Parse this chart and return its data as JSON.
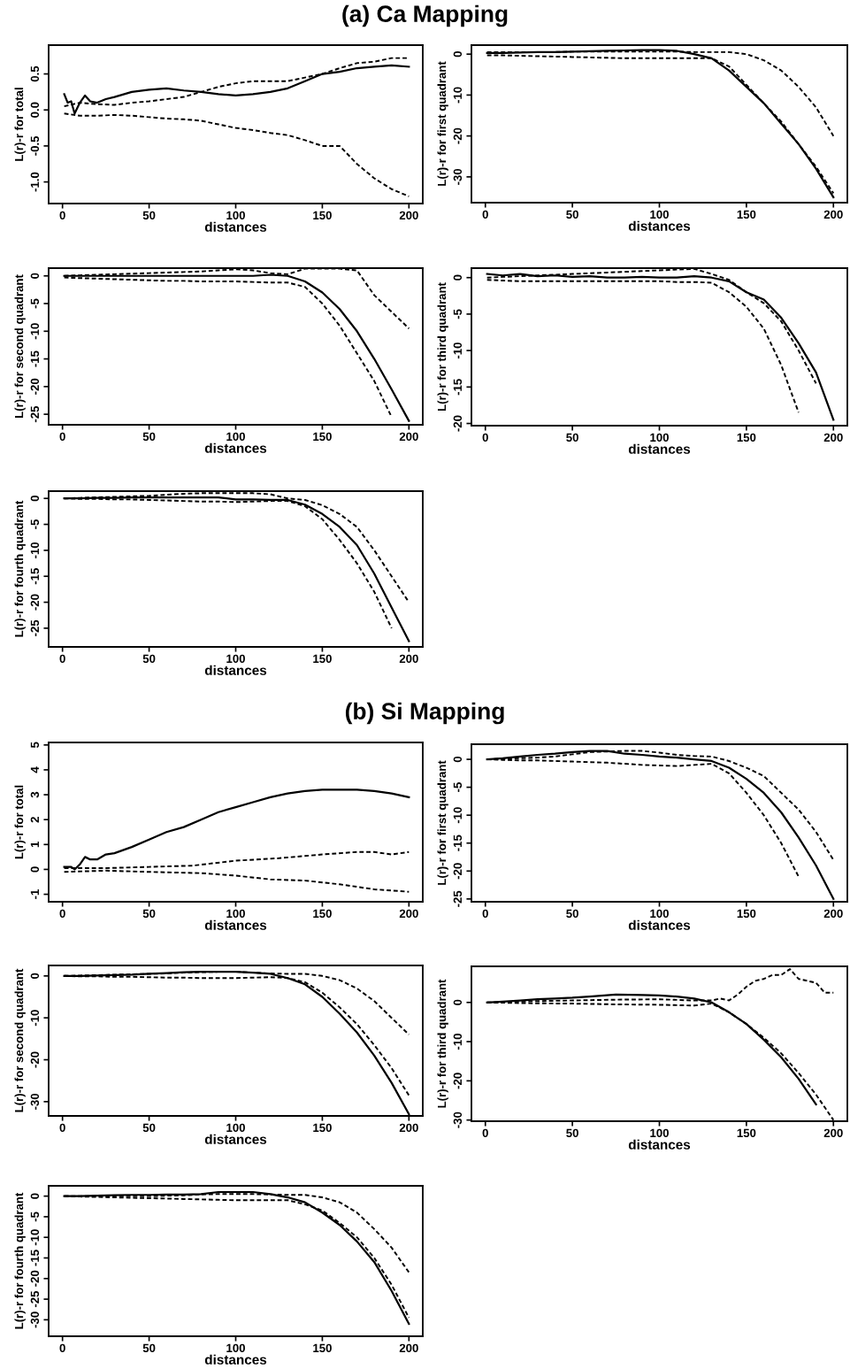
{
  "chart_data": [
    {
      "type": "line",
      "title": "(a) Ca Mapping",
      "xlabel": "distances",
      "ylabel": "L(r)-r for total",
      "xlim": [
        -8,
        208
      ],
      "xticks": [
        0,
        50,
        100,
        150,
        200
      ],
      "ylim": [
        -1.3,
        0.9
      ],
      "yticks": [
        {
          "value": -1.0,
          "label": "-1.0"
        },
        {
          "value": -0.5,
          "label": "-0.5"
        },
        {
          "value": 0.0,
          "label": "0.0"
        },
        {
          "value": 0.5,
          "label": "0.5"
        }
      ],
      "series": [
        {
          "color": "#000000",
          "line_style": "solid",
          "x": [
            1,
            3,
            5,
            7,
            10,
            13,
            16,
            20,
            25,
            30,
            40,
            50,
            60,
            70,
            80,
            90,
            100,
            110,
            120,
            130,
            140,
            150,
            160,
            170,
            180,
            190,
            200
          ],
          "values": [
            0.22,
            0.1,
            0.12,
            -0.05,
            0.1,
            0.2,
            0.12,
            0.1,
            0.15,
            0.18,
            0.25,
            0.28,
            0.3,
            0.27,
            0.25,
            0.22,
            0.2,
            0.22,
            0.25,
            0.3,
            0.4,
            0.5,
            0.53,
            0.58,
            0.6,
            0.62,
            0.6
          ]
        },
        {
          "color": "#000000",
          "line_style": "dashed",
          "x": [
            1,
            10,
            20,
            30,
            40,
            50,
            60,
            70,
            80,
            90,
            100,
            110,
            120,
            130,
            140,
            150,
            160,
            170,
            180,
            190,
            200
          ],
          "values": [
            0.05,
            0.1,
            0.08,
            0.07,
            0.1,
            0.12,
            0.15,
            0.18,
            0.25,
            0.32,
            0.37,
            0.4,
            0.4,
            0.4,
            0.45,
            0.5,
            0.58,
            0.65,
            0.67,
            0.72,
            0.72
          ]
        },
        {
          "color": "#000000",
          "line_style": "dashed",
          "x": [
            1,
            10,
            20,
            30,
            40,
            50,
            60,
            70,
            80,
            90,
            100,
            110,
            120,
            130,
            140,
            150,
            160,
            170,
            180,
            190,
            200
          ],
          "values": [
            -0.05,
            -0.08,
            -0.08,
            -0.07,
            -0.08,
            -0.1,
            -0.12,
            -0.13,
            -0.15,
            -0.2,
            -0.25,
            -0.28,
            -0.32,
            -0.35,
            -0.42,
            -0.5,
            -0.5,
            -0.75,
            -0.95,
            -1.1,
            -1.2
          ]
        }
      ]
    },
    {
      "type": "line",
      "xlabel": "distances",
      "ylabel": "L(r)-r for first quadrant",
      "xlim": [
        -8,
        208
      ],
      "xticks": [
        0,
        50,
        100,
        150,
        200
      ],
      "ylim": [
        -36.3,
        2.2
      ],
      "yticks": [
        -30,
        -20,
        -10,
        0
      ],
      "x": [
        1,
        10,
        20,
        30,
        40,
        50,
        60,
        70,
        80,
        90,
        100,
        110,
        120,
        130,
        140,
        150,
        160,
        170,
        180,
        190,
        200
      ],
      "series": [
        {
          "color": "#000000",
          "line_style": "solid",
          "values": [
            0.3,
            0.3,
            0.4,
            0.5,
            0.5,
            0.6,
            0.7,
            0.8,
            0.9,
            1,
            1,
            0.8,
            0,
            -1,
            -4,
            -8,
            -12,
            -17,
            -22,
            -28,
            -35
          ]
        },
        {
          "color": "#000000",
          "line_style": "dashed",
          "values": [
            0.5,
            0.5,
            0.5,
            0.5,
            0.5,
            0.6,
            0.6,
            0.6,
            0.6,
            0.6,
            0.6,
            0.6,
            0.5,
            0.5,
            0.5,
            0,
            -1.5,
            -4,
            -8,
            -13,
            -20
          ]
        },
        {
          "color": "#000000",
          "line_style": "dashed",
          "values": [
            -0.3,
            -0.3,
            -0.4,
            -0.5,
            -0.6,
            -0.7,
            -0.8,
            -0.9,
            -1,
            -1,
            -1,
            -1,
            -1,
            -1,
            -3,
            -7.5,
            -12,
            -16.5,
            -22,
            -27.5,
            -34
          ]
        }
      ]
    },
    {
      "type": "line",
      "xlabel": "distances",
      "ylabel": "L(r)-r for second quadrant",
      "xlim": [
        -8,
        208
      ],
      "xticks": [
        0,
        50,
        100,
        150,
        200
      ],
      "ylim": [
        -26.9,
        1.4
      ],
      "yticks": [
        -25,
        -20,
        -15,
        -10,
        -5,
        0
      ],
      "x": [
        1,
        10,
        20,
        30,
        40,
        50,
        60,
        70,
        80,
        90,
        100,
        110,
        120,
        130,
        140,
        150,
        160,
        170,
        180,
        190,
        200
      ],
      "series": [
        {
          "color": "#000000",
          "line_style": "solid",
          "values": [
            0,
            0,
            0,
            0,
            0,
            0,
            0,
            0,
            0,
            0,
            0,
            0,
            0.2,
            0,
            -1,
            -3,
            -6,
            -10,
            -15,
            -20.5,
            -26.2
          ]
        },
        {
          "color": "#000000",
          "line_style": "dashed",
          "values": [
            0,
            0.1,
            0.2,
            0.3,
            0.4,
            0.5,
            0.6,
            0.7,
            0.8,
            1,
            1.2,
            1,
            0.5,
            0.3,
            1.3,
            1.3,
            1.3,
            1,
            -3.5,
            -6.5,
            -9.5
          ]
        },
        {
          "color": "#000000",
          "line_style": "dashed",
          "values": [
            -0.3,
            -0.4,
            -0.5,
            -0.6,
            -0.7,
            -0.8,
            -0.9,
            -0.9,
            -1,
            -1,
            -1,
            -1.1,
            -1.2,
            -1.2,
            -2,
            -5,
            -9,
            -14,
            -19,
            -25.5,
            null
          ]
        }
      ]
    },
    {
      "type": "line",
      "xlabel": "distances",
      "ylabel": "L(r)-r for third quadrant",
      "xlim": [
        -8,
        208
      ],
      "xticks": [
        0,
        50,
        100,
        150,
        200
      ],
      "ylim": [
        -20.3,
        1.3
      ],
      "yticks": [
        -20,
        -15,
        -10,
        -5,
        0
      ],
      "x": [
        1,
        10,
        20,
        30,
        40,
        50,
        60,
        70,
        80,
        90,
        100,
        110,
        120,
        130,
        140,
        150,
        160,
        170,
        180,
        190,
        200
      ],
      "series": [
        {
          "color": "#000000",
          "line_style": "solid",
          "values": [
            0.5,
            0.3,
            0.5,
            0.2,
            0.3,
            0.1,
            0.2,
            0,
            0,
            0.1,
            0,
            0,
            0.2,
            0,
            -0.5,
            -2,
            -3,
            -5.5,
            -9,
            -13,
            -19.5
          ]
        },
        {
          "color": "#000000",
          "line_style": "dashed",
          "values": [
            0,
            0.1,
            0.2,
            0.3,
            0.4,
            0.5,
            0.6,
            0.7,
            0.8,
            0.9,
            1,
            1.1,
            1.2,
            0.5,
            -0.3,
            -2,
            -3.5,
            -6,
            -10,
            -14.5,
            null
          ]
        },
        {
          "color": "#000000",
          "line_style": "dashed",
          "values": [
            -0.3,
            -0.4,
            -0.5,
            -0.5,
            -0.5,
            -0.5,
            -0.5,
            -0.5,
            -0.5,
            -0.5,
            -0.5,
            -0.6,
            -0.6,
            -0.7,
            -2,
            -4,
            -7,
            -12,
            -18.5,
            null,
            null
          ]
        }
      ]
    },
    {
      "type": "line",
      "xlabel": "distances",
      "ylabel": "L(r)-r for fourth quadrant",
      "xlim": [
        -8,
        208
      ],
      "xticks": [
        0,
        50,
        100,
        150,
        200
      ],
      "ylim": [
        -28.6,
        1.4
      ],
      "yticks": [
        -25,
        -20,
        -15,
        -10,
        -5,
        0
      ],
      "x": [
        1,
        10,
        20,
        30,
        40,
        50,
        60,
        70,
        80,
        90,
        100,
        110,
        120,
        130,
        140,
        150,
        160,
        170,
        180,
        190,
        200
      ],
      "series": [
        {
          "color": "#000000",
          "line_style": "solid",
          "values": [
            0,
            0,
            0.1,
            0.1,
            0.2,
            0.2,
            0.2,
            0.2,
            0.2,
            0.2,
            -0.2,
            -0.2,
            -0.3,
            -0.3,
            -1.2,
            -3,
            -5.5,
            -9,
            -14.5,
            -21,
            -27.5
          ]
        },
        {
          "color": "#000000",
          "line_style": "dashed",
          "values": [
            0,
            0.1,
            0.2,
            0.3,
            0.4,
            0.5,
            0.7,
            0.9,
            1,
            1,
            1,
            1,
            0.8,
            0,
            -0.3,
            -1.3,
            -3,
            -5.5,
            -10,
            -15,
            -20
          ]
        },
        {
          "color": "#000000",
          "line_style": "dashed",
          "values": [
            0,
            -0.1,
            -0.1,
            -0.2,
            -0.2,
            -0.3,
            -0.4,
            -0.5,
            -0.6,
            -0.6,
            -0.7,
            -0.6,
            -0.5,
            -0.5,
            -1.5,
            -4,
            -8,
            -12.5,
            -18,
            -25,
            null
          ]
        }
      ]
    },
    {
      "type": "line",
      "title": "(b) Si Mapping",
      "xlabel": "distances",
      "ylabel": "L(r)-r for total",
      "xlim": [
        -8,
        208
      ],
      "xticks": [
        0,
        50,
        100,
        150,
        200
      ],
      "ylim": [
        -1.3,
        5.1
      ],
      "yticks": [
        -1,
        0,
        1,
        2,
        3,
        4,
        5
      ],
      "series": [
        {
          "color": "#000000",
          "line_style": "solid",
          "x": [
            1,
            5,
            7,
            10,
            13,
            16,
            20,
            25,
            30,
            40,
            50,
            60,
            70,
            80,
            90,
            100,
            110,
            120,
            130,
            140,
            150,
            160,
            170,
            180,
            190,
            200
          ],
          "values": [
            0.1,
            0.1,
            0,
            0.2,
            0.5,
            0.4,
            0.4,
            0.6,
            0.65,
            0.9,
            1.2,
            1.5,
            1.7,
            2.0,
            2.3,
            2.5,
            2.7,
            2.9,
            3.05,
            3.15,
            3.2,
            3.2,
            3.2,
            3.15,
            3.05,
            2.9
          ]
        },
        {
          "color": "#000000",
          "line_style": "dashed",
          "x": [
            1,
            25,
            50,
            75,
            100,
            125,
            150,
            170,
            180,
            190,
            200
          ],
          "values": [
            0.05,
            0.05,
            0.1,
            0.15,
            0.35,
            0.45,
            0.6,
            0.7,
            0.7,
            0.6,
            0.7
          ]
        },
        {
          "color": "#000000",
          "line_style": "dashed",
          "x": [
            1,
            25,
            50,
            80,
            100,
            120,
            140,
            160,
            180,
            200
          ],
          "values": [
            -0.1,
            -0.05,
            -0.1,
            -0.15,
            -0.25,
            -0.4,
            -0.45,
            -0.6,
            -0.8,
            -0.9
          ]
        }
      ]
    },
    {
      "type": "line",
      "xlabel": "distances",
      "ylabel": "L(r)-r for first quadrant",
      "xlim": [
        -8,
        208
      ],
      "xticks": [
        0,
        50,
        100,
        150,
        200
      ],
      "ylim": [
        -25.5,
        2.7
      ],
      "yticks": [
        -25,
        -20,
        -15,
        -10,
        -5,
        0
      ],
      "x": [
        1,
        10,
        20,
        30,
        40,
        50,
        60,
        70,
        80,
        90,
        100,
        110,
        120,
        130,
        140,
        150,
        160,
        170,
        180,
        190,
        200
      ],
      "series": [
        {
          "color": "#000000",
          "line_style": "solid",
          "values": [
            0,
            0.2,
            0.5,
            0.8,
            1,
            1.3,
            1.5,
            1.5,
            1,
            0.8,
            0.5,
            0.3,
            0,
            -0.3,
            -1.5,
            -3.5,
            -6,
            -9.5,
            -14,
            -19,
            -25
          ]
        },
        {
          "color": "#000000",
          "line_style": "dashed",
          "values": [
            0,
            0.1,
            0.2,
            0.3,
            0.5,
            0.9,
            1.3,
            1.4,
            1.5,
            1.5,
            1.2,
            0.8,
            0.6,
            0.5,
            -0.3,
            -1.5,
            -3,
            -6,
            -9,
            -13,
            -18
          ]
        },
        {
          "color": "#000000",
          "line_style": "dashed",
          "values": [
            0,
            -0.1,
            -0.2,
            -0.2,
            -0.3,
            -0.4,
            -0.5,
            -0.6,
            -0.8,
            -1,
            -1.1,
            -1.2,
            -1,
            -0.8,
            -2.5,
            -6,
            -10,
            -15,
            -21,
            null,
            null
          ]
        }
      ]
    },
    {
      "type": "line",
      "xlabel": "distances",
      "ylabel": "L(r)-r for second quadrant",
      "xlim": [
        -8,
        208
      ],
      "xticks": [
        0,
        50,
        100,
        150,
        200
      ],
      "ylim": [
        -33.4,
        2.5
      ],
      "yticks": [
        -30,
        -20,
        -10,
        0
      ],
      "x": [
        1,
        10,
        20,
        30,
        40,
        50,
        60,
        70,
        80,
        90,
        100,
        110,
        120,
        130,
        140,
        150,
        160,
        170,
        180,
        190,
        200
      ],
      "series": [
        {
          "color": "#000000",
          "line_style": "solid",
          "values": [
            0,
            0,
            0.1,
            0.2,
            0.3,
            0.5,
            0.7,
            0.9,
            1,
            1,
            1,
            0.8,
            0.5,
            -0.5,
            -2,
            -5,
            -9,
            -13.5,
            -19,
            -25.5,
            -33
          ]
        },
        {
          "color": "#000000",
          "line_style": "dashed",
          "values": [
            0,
            0.1,
            0.2,
            0.3,
            0.4,
            0.5,
            0.6,
            0.8,
            0.9,
            1,
            1,
            0.8,
            0.6,
            0.5,
            0.5,
            0,
            -1,
            -3,
            -6,
            -10,
            -14
          ]
        },
        {
          "color": "#000000",
          "line_style": "dashed",
          "values": [
            0,
            -0.1,
            -0.1,
            -0.2,
            -0.2,
            -0.3,
            -0.4,
            -0.4,
            -0.5,
            -0.5,
            -0.5,
            -0.4,
            -0.3,
            -0.5,
            -1.5,
            -4,
            -7.5,
            -11.5,
            -16.5,
            -22,
            -28.5
          ]
        }
      ]
    },
    {
      "type": "line",
      "xlabel": "distances",
      "ylabel": "L(r)-r for third quadrant",
      "xlim": [
        -8,
        208
      ],
      "xticks": [
        0,
        50,
        100,
        150,
        200
      ],
      "ylim": [
        -30.3,
        9.2
      ],
      "yticks": [
        -30,
        -20,
        -10,
        0
      ],
      "series": [
        {
          "color": "#000000",
          "line_style": "solid",
          "x": [
            1,
            10,
            20,
            30,
            40,
            50,
            60,
            75,
            90,
            100,
            110,
            120,
            130,
            140,
            150,
            160,
            170,
            180,
            190
          ],
          "values": [
            0,
            0.2,
            0.5,
            0.8,
            1,
            1.2,
            1.5,
            2,
            1.9,
            1.8,
            1.5,
            1,
            0,
            -2.5,
            -5.5,
            -9.5,
            -14,
            -19.5,
            -26
          ]
        },
        {
          "color": "#000000",
          "line_style": "dashed",
          "x": [
            1,
            25,
            50,
            75,
            100,
            120,
            130,
            135,
            140,
            145,
            150,
            155,
            160,
            165,
            170,
            175,
            180,
            185,
            190,
            195,
            200
          ],
          "values": [
            0,
            0.3,
            0.5,
            0.7,
            0.8,
            0.5,
            0.5,
            1,
            0.5,
            2,
            4,
            5.5,
            6,
            7,
            7,
            8.5,
            6,
            5.5,
            5,
            2.5,
            2.5
          ]
        },
        {
          "color": "#000000",
          "line_style": "dashed",
          "x": [
            1,
            25,
            50,
            75,
            100,
            120,
            130,
            140,
            150,
            160,
            170,
            180,
            190,
            200
          ],
          "values": [
            0,
            -0.2,
            -0.3,
            -0.5,
            -0.6,
            -0.8,
            -0.3,
            -2.5,
            -5.5,
            -9,
            -13,
            -18,
            -23.5,
            -30
          ]
        }
      ]
    },
    {
      "type": "line",
      "xlabel": "distances",
      "ylabel": "L(r)-r for fourth quadrant",
      "xlim": [
        -8,
        208
      ],
      "xticks": [
        0,
        50,
        100,
        150,
        200
      ],
      "ylim": [
        -34,
        2.5
      ],
      "yticks": [
        -30,
        -25,
        -20,
        -15,
        -10,
        -5,
        0
      ],
      "x": [
        1,
        10,
        20,
        30,
        40,
        50,
        60,
        70,
        80,
        90,
        100,
        110,
        120,
        130,
        140,
        150,
        160,
        170,
        180,
        190,
        200
      ],
      "series": [
        {
          "color": "#000000",
          "line_style": "solid",
          "values": [
            0,
            0,
            0.1,
            0.2,
            0.3,
            0.3,
            0.4,
            0.4,
            0.5,
            1,
            1,
            1,
            0.5,
            -0.3,
            -1.5,
            -4,
            -7,
            -11,
            -16,
            -23,
            -31
          ]
        },
        {
          "color": "#000000",
          "line_style": "dashed",
          "values": [
            0,
            0,
            0,
            0,
            0,
            0,
            0.1,
            0.2,
            0.4,
            0.5,
            0.5,
            0.5,
            0.4,
            0.3,
            0.3,
            -0.3,
            -1.5,
            -4,
            -8,
            -12.5,
            -18.5
          ]
        },
        {
          "color": "#000000",
          "line_style": "dashed",
          "values": [
            0,
            -0.1,
            -0.2,
            -0.3,
            -0.4,
            -0.5,
            -0.6,
            -0.7,
            -0.8,
            -0.9,
            -1,
            -1,
            -1,
            -1,
            -2,
            -3.5,
            -6.5,
            -10,
            -15,
            -21.5,
            -29.5
          ]
        }
      ]
    }
  ]
}
